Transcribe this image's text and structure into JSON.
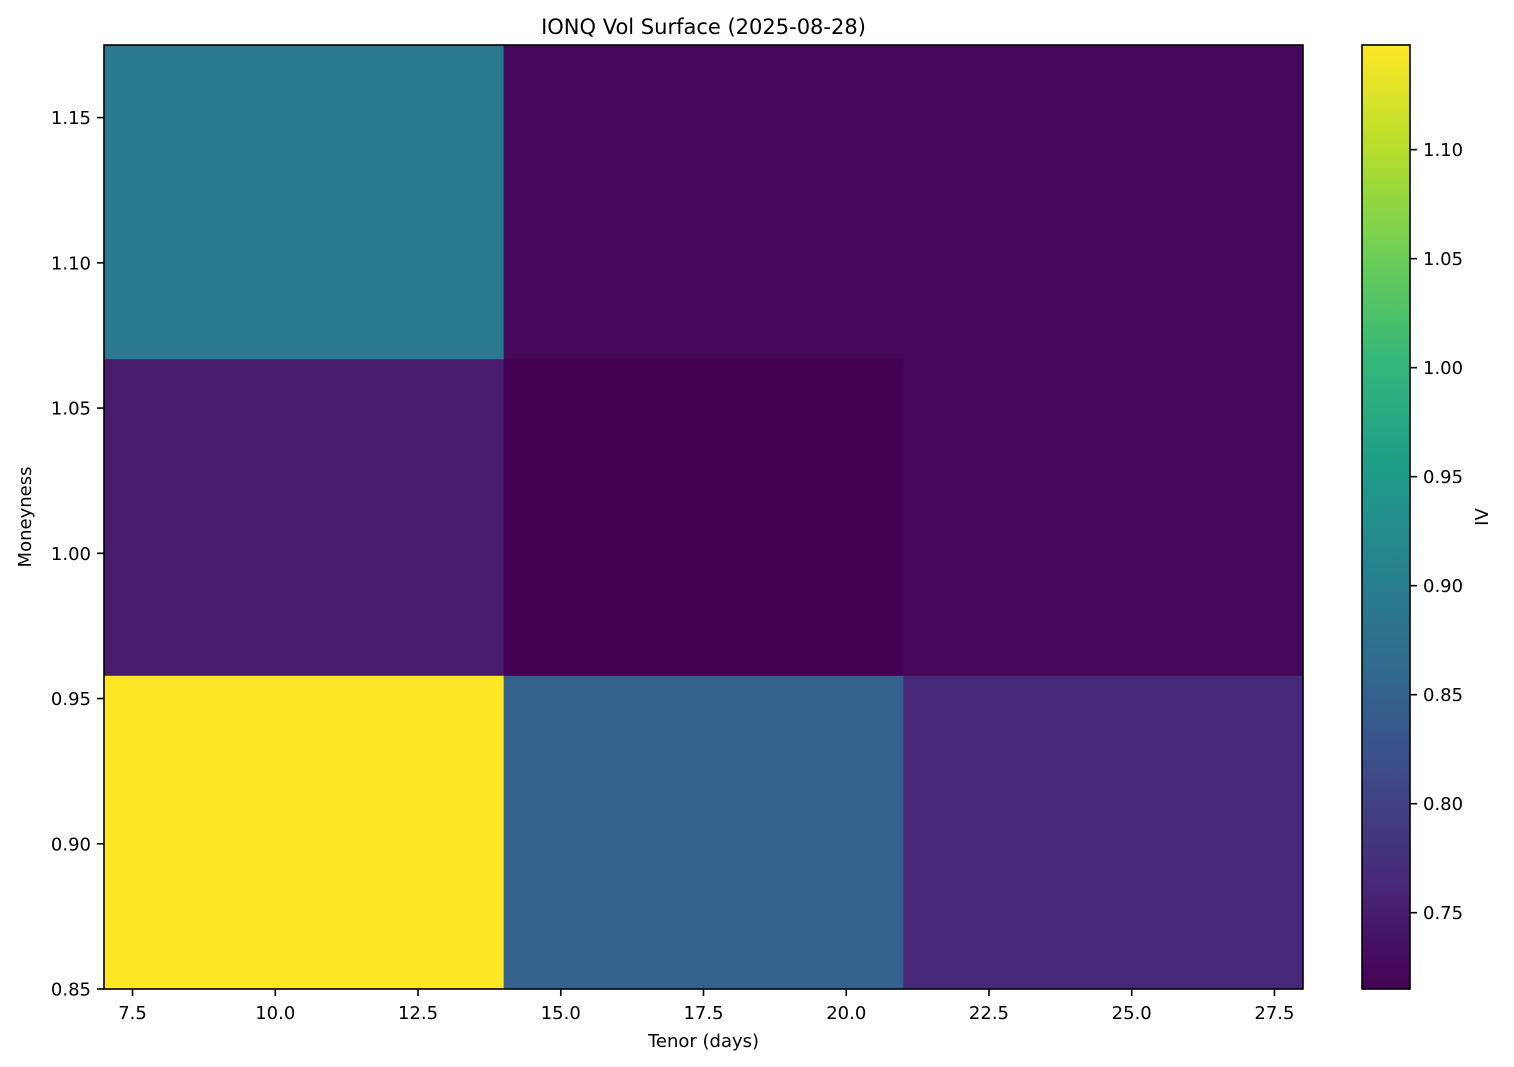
{
  "chart_data": {
    "type": "heatmap",
    "title": "IONQ Vol Surface (2025-08-28)",
    "xlabel": "Tenor (days)",
    "ylabel": "Moneyness",
    "colorbar_label": "IV",
    "colormap": "viridis",
    "x_edges": [
      7,
      14,
      21,
      28
    ],
    "y_edges": [
      0.85,
      0.958,
      1.067,
      1.175
    ],
    "xlim": [
      7,
      28
    ],
    "ylim": [
      0.85,
      1.175
    ],
    "clim": [
      0.715,
      1.148
    ],
    "x_ticks": [
      "7.5",
      "10.0",
      "12.5",
      "15.0",
      "17.5",
      "20.0",
      "22.5",
      "25.0",
      "27.5"
    ],
    "y_ticks": [
      "0.85",
      "0.90",
      "0.95",
      "1.00",
      "1.05",
      "1.10",
      "1.15"
    ],
    "colorbar_ticks": [
      "0.75",
      "0.80",
      "0.85",
      "0.90",
      "0.95",
      "1.00",
      "1.05",
      "1.10"
    ],
    "values": [
      [
        1.148,
        0.848,
        0.765
      ],
      [
        0.748,
        0.715,
        0.722
      ],
      [
        0.893,
        0.722,
        0.722
      ]
    ]
  }
}
